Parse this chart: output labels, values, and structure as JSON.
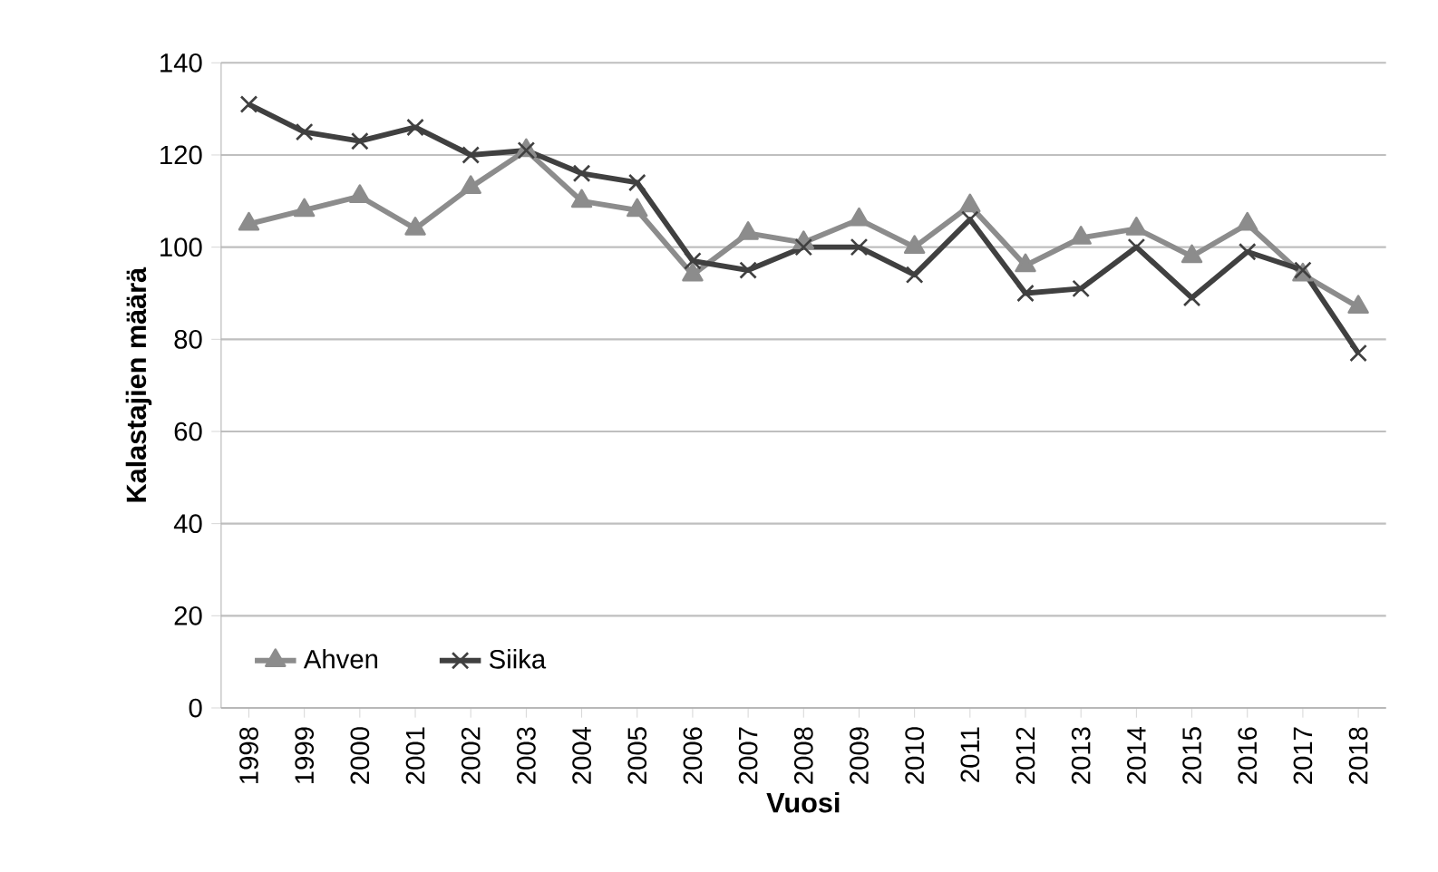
{
  "chart_data": {
    "type": "line",
    "xlabel": "Vuosi",
    "ylabel": "Kalastajien määrä",
    "categories": [
      "1998",
      "1999",
      "2000",
      "2001",
      "2002",
      "2003",
      "2004",
      "2005",
      "2006",
      "2007",
      "2008",
      "2009",
      "2010",
      "2011",
      "2012",
      "2013",
      "2014",
      "2015",
      "2016",
      "2017",
      "2018"
    ],
    "series": [
      {
        "name": "Ahven",
        "color": "#8c8c8c",
        "marker": "triangle",
        "values": [
          105,
          108,
          111,
          104,
          113,
          121,
          110,
          108,
          94,
          103,
          101,
          106,
          100,
          109,
          96,
          102,
          104,
          98,
          105,
          94,
          87
        ]
      },
      {
        "name": "Siika",
        "color": "#404040",
        "marker": "cross",
        "values": [
          131,
          125,
          123,
          126,
          120,
          121,
          116,
          114,
          97,
          95,
          100,
          100,
          94,
          106,
          90,
          91,
          100,
          89,
          99,
          95,
          77
        ]
      }
    ],
    "ylim": [
      0,
      140
    ],
    "yticks": [
      0,
      20,
      40,
      60,
      80,
      100,
      120,
      140
    ],
    "grid": "y",
    "legend": "bottom left",
    "line_style": "solid"
  }
}
